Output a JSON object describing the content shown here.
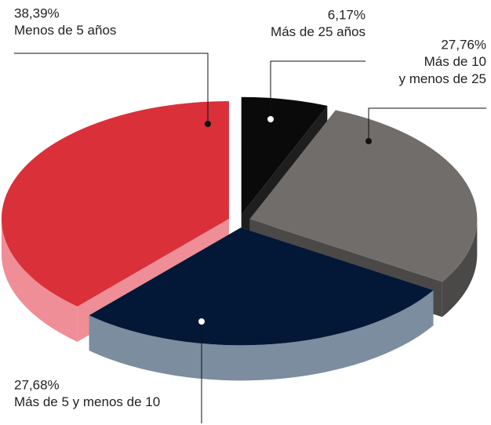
{
  "chart_data": {
    "type": "pie",
    "categories": [
      "Menos de 5 años",
      "Más de 25 años",
      "Más de 10\ny menos de 25",
      "Más de 5 y menos de 10"
    ],
    "values": [
      38.39,
      6.17,
      27.76,
      27.68
    ],
    "value_labels": [
      "38,39%",
      "6,17%",
      "27,76%",
      "27,68%"
    ],
    "colors": [
      "#d9303a",
      "#0a0a0a",
      "#716d6b",
      "#031836"
    ],
    "side_colors": [
      "#ef8e96",
      "#1e1e1e",
      "#4b4948",
      "#7b8d9e"
    ]
  }
}
